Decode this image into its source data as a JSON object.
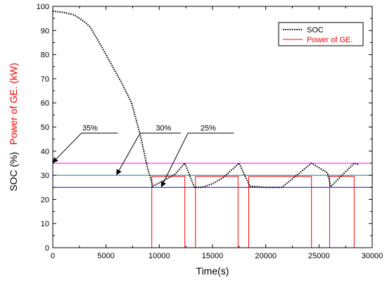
{
  "chart_data": {
    "type": "line",
    "xlabel": "Time(s)",
    "ylabel_parts": [
      {
        "text": "SOC (%)",
        "color": "#000000"
      },
      {
        "text": "Power of GE. (kW)",
        "color": "#ff0000"
      }
    ],
    "xlim": [
      0,
      30000
    ],
    "ylim": [
      0,
      100
    ],
    "xticks": [
      0,
      5000,
      10000,
      15000,
      20000,
      25000,
      30000
    ],
    "yticks": [
      0,
      10,
      20,
      30,
      40,
      50,
      60,
      70,
      80,
      90,
      100
    ],
    "grid": false,
    "legend_position": "top-right",
    "series": [
      {
        "name": "SOC",
        "color": "#000000",
        "style": "dotted",
        "x": [
          0,
          1000,
          2000,
          3000,
          3500,
          4500,
          5500,
          6500,
          7400,
          8200,
          8900,
          9400,
          10500,
          11500,
          12400,
          13300,
          14000,
          15000,
          16000,
          17500,
          18500,
          20000,
          21500,
          22500,
          24300,
          25800,
          26100,
          28300,
          28700
        ],
        "y": [
          98,
          97.5,
          96.5,
          93.5,
          91.5,
          84,
          76,
          68,
          60,
          47,
          33,
          25.5,
          28,
          30.5,
          35,
          25,
          25,
          26.5,
          29,
          35,
          25.5,
          25,
          25,
          28.5,
          35,
          31,
          25.3,
          35,
          34.5
        ]
      },
      {
        "name": "Power of GE.",
        "color": "#ff0000",
        "style": "solid",
        "x": [
          0,
          9300,
          9300,
          12400,
          12400,
          13400,
          13400,
          17400,
          17400,
          18400,
          18400,
          24300,
          24300,
          26000,
          26000,
          28300,
          28300,
          28700
        ],
        "y": [
          0,
          0,
          29.5,
          29.5,
          0,
          0,
          29.5,
          29.5,
          0,
          0,
          29.5,
          29.5,
          0,
          0,
          29.5,
          29.5,
          0,
          0
        ]
      }
    ],
    "reference_lines": [
      {
        "y": 35,
        "color": "#ff00ff"
      },
      {
        "y": 30,
        "color": "#008080"
      },
      {
        "y": 25,
        "color": "#0000ff"
      }
    ],
    "annotations": [
      {
        "label": "35%",
        "text_at": [
          3500,
          48.5
        ],
        "underline": [
          2700,
          6100,
          47.5
        ],
        "arrow_from": [
          2700,
          47.5
        ],
        "arrow_to": [
          0,
          35.3
        ]
      },
      {
        "label": "30%",
        "text_at": [
          10400,
          48.5
        ],
        "underline": [
          8200,
          12000,
          47.5
        ],
        "arrow_from": [
          8200,
          47.5
        ],
        "arrow_to": [
          6000,
          30.3
        ]
      },
      {
        "label": "25%",
        "text_at": [
          14600,
          48.5
        ],
        "underline": [
          12700,
          17000,
          47.5
        ],
        "arrow_from": [
          12700,
          47.5
        ],
        "arrow_to": [
          10200,
          25.3
        ]
      }
    ]
  }
}
